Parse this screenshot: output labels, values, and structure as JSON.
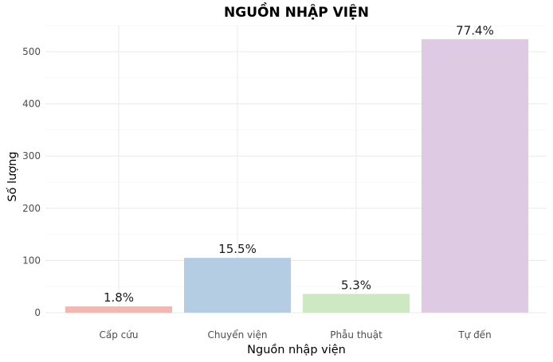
{
  "chart_data": {
    "type": "bar",
    "title": "NGUỒN NHẬP VIỆN",
    "xlabel": "Nguồn nhập viện",
    "ylabel": "Số lượng",
    "categories": [
      "Cấp cứu",
      "Chuyển viện",
      "Phẫu thuật",
      "Tự đến"
    ],
    "values": [
      12,
      105,
      36,
      524
    ],
    "data_labels": [
      "1.8%",
      "15.5%",
      "5.3%",
      "77.4%"
    ],
    "colors": [
      "#F4B6AE",
      "#B4CDE2",
      "#CDE9C4",
      "#DECBE3"
    ],
    "yticks": [
      0,
      100,
      200,
      300,
      400,
      500
    ],
    "ylim": [
      0,
      550
    ],
    "grid": true,
    "legend": "none"
  }
}
